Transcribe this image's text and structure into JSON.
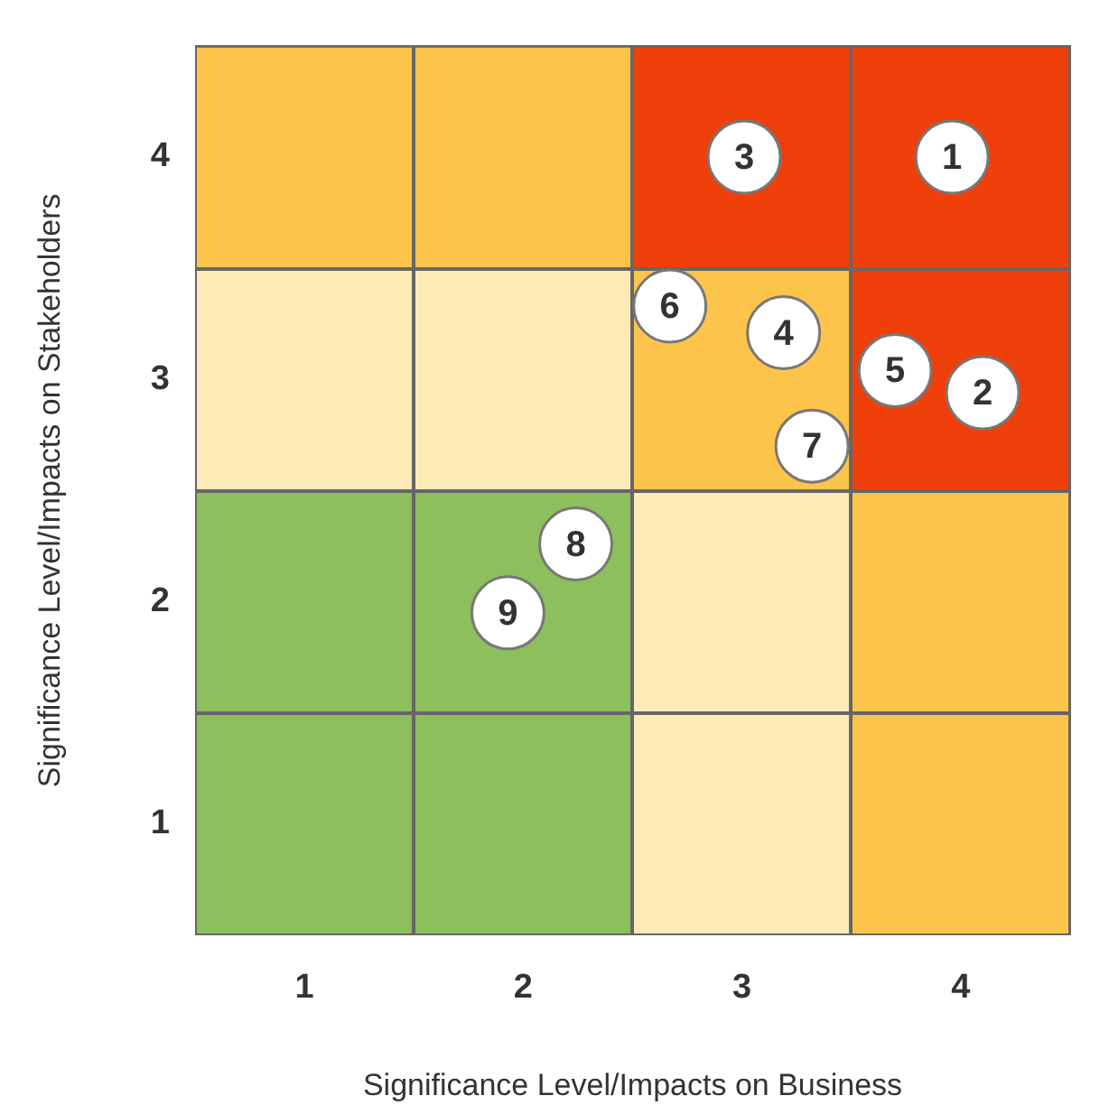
{
  "chart_data": {
    "type": "scatter",
    "xlabel": "Significance Level/Impacts on Business",
    "ylabel": "Significance Level/Impacts on Stakeholders",
    "xlim": [
      0.5,
      4.5
    ],
    "ylim": [
      0.5,
      4.5
    ],
    "xticks": [
      1,
      2,
      3,
      4
    ],
    "yticks": [
      1,
      2,
      3,
      4
    ],
    "grid": false,
    "legend": false,
    "marker": "circle",
    "series": [
      {
        "color": "#ffffff",
        "x": [
          3.96,
          4.1,
          3.01,
          3.19,
          3.7,
          2.67,
          3.32,
          2.24,
          1.93
        ],
        "values": [
          4.0,
          2.94,
          4.0,
          3.21,
          3.04,
          3.33,
          2.7,
          2.26,
          1.95
        ]
      }
    ],
    "annotations": [
      {
        "text": "1",
        "x": 3.96,
        "y": 4.0
      },
      {
        "text": "2",
        "x": 4.1,
        "y": 2.94
      },
      {
        "text": "3",
        "x": 3.01,
        "y": 4.0
      },
      {
        "text": "4",
        "x": 3.19,
        "y": 3.21
      },
      {
        "text": "5",
        "x": 3.7,
        "y": 3.04
      },
      {
        "text": "6",
        "x": 2.67,
        "y": 3.33
      },
      {
        "text": "7",
        "x": 3.32,
        "y": 2.7
      },
      {
        "text": "8",
        "x": 2.24,
        "y": 2.26
      },
      {
        "text": "9",
        "x": 1.93,
        "y": 1.95
      }
    ]
  }
}
